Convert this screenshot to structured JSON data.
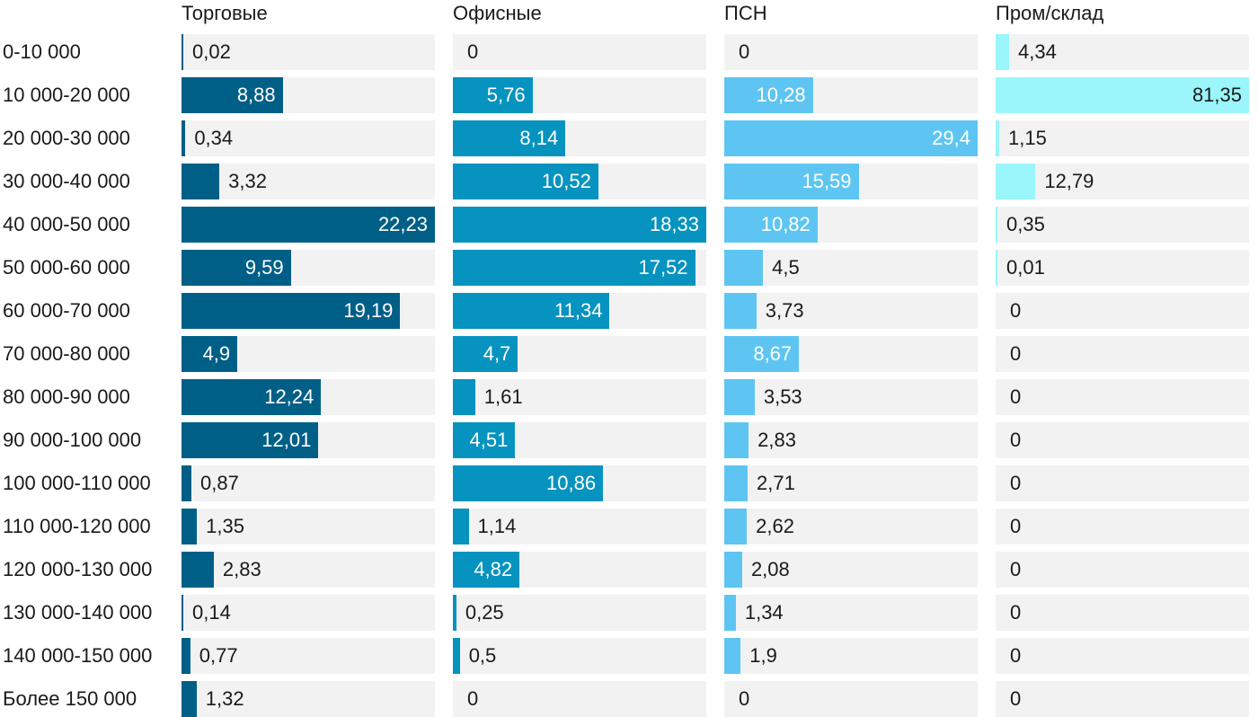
{
  "chart_data": {
    "type": "bar",
    "orientation": "horizontal",
    "layout": "small-multiples",
    "categories": [
      "0-10 000",
      "10 000-20 000",
      "20 000-30 000",
      "30 000-40 000",
      "40 000-50 000",
      "50 000-60 000",
      "60 000-70 000",
      "70 000-80 000",
      "80 000-90 000",
      "90 000-100 000",
      "100 000-110 000",
      "110 000-120 000",
      "120 000-130 000",
      "130 000-140 000",
      "140 000-150 000",
      "Более 150 000"
    ],
    "series": [
      {
        "name": "Торговые",
        "color": "#005f87",
        "max": 22.23,
        "values": [
          0.02,
          8.88,
          0.34,
          3.32,
          22.23,
          9.59,
          19.19,
          4.9,
          12.24,
          12.01,
          0.87,
          1.35,
          2.83,
          0.14,
          0.77,
          1.32
        ],
        "labels": [
          "0,02",
          "8,88",
          "0,34",
          "3,32",
          "22,23",
          "9,59",
          "19,19",
          "4,9",
          "12,24",
          "12,01",
          "0,87",
          "1,35",
          "2,83",
          "0,14",
          "0,77",
          "1,32"
        ]
      },
      {
        "name": "Офисные",
        "color": "#0693bf",
        "max": 18.33,
        "values": [
          0,
          5.76,
          8.14,
          10.52,
          18.33,
          17.52,
          11.34,
          4.7,
          1.61,
          4.51,
          10.86,
          1.14,
          4.82,
          0.25,
          0.5,
          0
        ],
        "labels": [
          "0",
          "5,76",
          "8,14",
          "10,52",
          "18,33",
          "17,52",
          "11,34",
          "4,7",
          "1,61",
          "4,51",
          "10,86",
          "1,14",
          "4,82",
          "0,25",
          "0,5",
          "0"
        ]
      },
      {
        "name": "ПСН",
        "color": "#5ec5f2",
        "max": 29.4,
        "values": [
          0,
          10.28,
          29.4,
          15.59,
          10.82,
          4.5,
          3.73,
          8.67,
          3.53,
          2.83,
          2.71,
          2.62,
          2.08,
          1.34,
          1.9,
          0
        ],
        "labels": [
          "0",
          "10,28",
          "29,4",
          "15,59",
          "10,82",
          "4,5",
          "3,73",
          "8,67",
          "3,53",
          "2,83",
          "2,71",
          "2,62",
          "2,08",
          "1,34",
          "1,9",
          "0"
        ]
      },
      {
        "name": "Пром/склад",
        "color": "#9af6fb",
        "max": 81.35,
        "values": [
          4.34,
          81.35,
          1.15,
          12.79,
          0.35,
          0.01,
          0,
          0,
          0,
          0,
          0,
          0,
          0,
          0,
          0,
          0
        ],
        "labels": [
          "4,34",
          "81,35",
          "1,15",
          "12,79",
          "0,35",
          "0,01",
          "0",
          "0",
          "0",
          "0",
          "0",
          "0",
          "0",
          "0",
          "0",
          "0"
        ]
      }
    ],
    "title": "",
    "xlabel": "",
    "ylabel": "",
    "grid": false,
    "legend": "none"
  }
}
